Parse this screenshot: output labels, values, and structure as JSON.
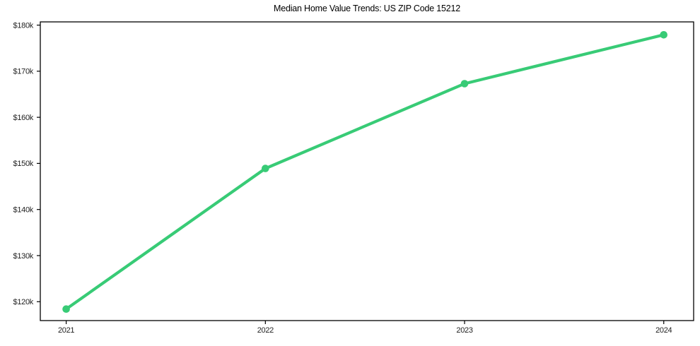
{
  "figure": {
    "background": "#ffffff"
  },
  "chart_data": {
    "type": "line",
    "title": "Median Home Value Trends: US ZIP Code 15212",
    "x": [
      2021,
      2022,
      2023,
      2024
    ],
    "x_tick_labels": [
      "2021",
      "2022",
      "2023",
      "2024"
    ],
    "series": [
      {
        "name": "Median Home Value",
        "values": [
          118400,
          148900,
          167300,
          177900
        ],
        "color": "#38cb76",
        "marker": "circle",
        "line_width": 4.2,
        "marker_radius": 5.3
      }
    ],
    "y_ticks": [
      120000,
      130000,
      140000,
      150000,
      160000,
      170000,
      180000
    ],
    "y_tick_labels": [
      "$120k",
      "$130k",
      "$140k",
      "$150k",
      "$160k",
      "$170k",
      "$180k"
    ],
    "xlim": [
      2020.87,
      2024.15
    ],
    "ylim": [
      115900,
      180700
    ],
    "xlabel": "",
    "ylabel": "",
    "grid": false,
    "legend": false,
    "axis_color": "#000000",
    "tick_label_color": "#1f1f1f"
  }
}
